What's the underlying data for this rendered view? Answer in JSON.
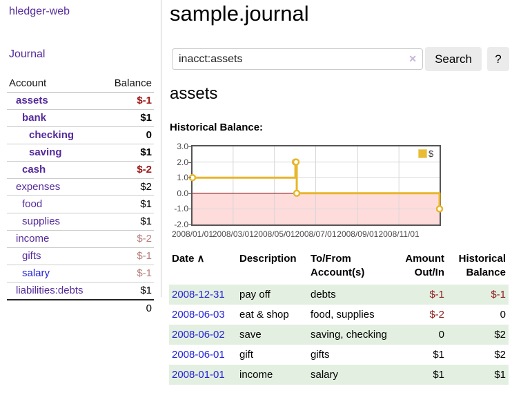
{
  "sidebar": {
    "brand": "hledger-web",
    "nav": {
      "journal": "Journal"
    },
    "table": {
      "header": {
        "account": "Account",
        "balance": "Balance"
      },
      "rows": [
        {
          "account": "assets",
          "balance": "$-1",
          "level": 1,
          "bold": true,
          "balance_style": "negative",
          "link_style": "visited"
        },
        {
          "account": "bank",
          "balance": "$1",
          "level": 2,
          "bold": true,
          "balance_style": "normal",
          "link_style": "visited"
        },
        {
          "account": "checking",
          "balance": "0",
          "level": 3,
          "bold": true,
          "balance_style": "normal",
          "link_style": "visited"
        },
        {
          "account": "saving",
          "balance": "$1",
          "level": 3,
          "bold": true,
          "balance_style": "normal",
          "link_style": "visited"
        },
        {
          "account": "cash",
          "balance": "$-2",
          "level": 2,
          "bold": true,
          "balance_style": "negative",
          "link_style": "visited"
        },
        {
          "account": "expenses",
          "balance": "$2",
          "level": 1,
          "bold": false,
          "balance_style": "normal",
          "link_style": "visited"
        },
        {
          "account": "food",
          "balance": "$1",
          "level": 2,
          "bold": false,
          "balance_style": "normal",
          "link_style": "visited"
        },
        {
          "account": "supplies",
          "balance": "$1",
          "level": 2,
          "bold": false,
          "balance_style": "normal",
          "link_style": "visited"
        },
        {
          "account": "income",
          "balance": "$-2",
          "level": 1,
          "bold": false,
          "balance_style": "negative-muted",
          "link_style": "visited"
        },
        {
          "account": "gifts",
          "balance": "$-1",
          "level": 2,
          "bold": false,
          "balance_style": "negative-muted",
          "link_style": "visited"
        },
        {
          "account": "salary",
          "balance": "$-1",
          "level": 2,
          "bold": false,
          "balance_style": "negative-muted",
          "link_style": "unvisited"
        },
        {
          "account": "liabilities:debts",
          "balance": "$1",
          "level": 1,
          "bold": false,
          "balance_style": "normal",
          "link_style": "visited"
        }
      ],
      "total": "0"
    }
  },
  "main": {
    "title": "sample.journal",
    "search": {
      "value": "inacct:assets",
      "clear_icon": "✕",
      "search_button": "Search",
      "help_button": "?"
    },
    "account_heading": "assets",
    "chart_heading": "Historical Balance:"
  },
  "chart_data": {
    "type": "line",
    "step": true,
    "title": "Historical Balance:",
    "x_range": [
      "2008-01-01",
      "2008-12-31"
    ],
    "ylim": [
      -2,
      3
    ],
    "y_ticks": [
      "3.0",
      "2.0",
      "1.0",
      "0.0",
      "-1.0",
      "-2.0"
    ],
    "x_ticks": [
      {
        "label": "2008/01/01",
        "date": "2008-01-01"
      },
      {
        "label": "2008/03/01",
        "date": "2008-03-01"
      },
      {
        "label": "2008/05/01",
        "date": "2008-05-01"
      },
      {
        "label": "2008/07/01",
        "date": "2008-07-01"
      },
      {
        "label": "2008/09/01",
        "date": "2008-09-01"
      },
      {
        "label": "2008/11/01",
        "date": "2008-11-01"
      }
    ],
    "series": [
      {
        "name": "$",
        "color": "#e8b62d",
        "points": [
          {
            "date": "2008-01-01",
            "value": 1
          },
          {
            "date": "2008-06-01",
            "value": 2
          },
          {
            "date": "2008-06-02",
            "value": 2
          },
          {
            "date": "2008-06-03",
            "value": 0
          },
          {
            "date": "2008-12-31",
            "value": -1
          }
        ]
      }
    ],
    "legend_position": "top-right",
    "grid": true,
    "grid_color": "#d7d7d7",
    "negative_region_color": "#ffdcdc",
    "zero_line_color": "#8b1a1a"
  },
  "register": {
    "columns": [
      {
        "line1": "Date",
        "line2": "",
        "align": "left",
        "sort": "∧"
      },
      {
        "line1": "Description",
        "line2": "",
        "align": "left"
      },
      {
        "line1": "To/From",
        "line2": "Account(s)",
        "align": "left"
      },
      {
        "line1": "Amount",
        "line2": "Out/In",
        "align": "right"
      },
      {
        "line1": "Historical",
        "line2": "Balance",
        "align": "right"
      }
    ],
    "rows": [
      {
        "date": "2008-12-31",
        "description": "pay off",
        "accounts": [
          "debts"
        ],
        "amount": "$-1",
        "balance": "$-1"
      },
      {
        "date": "2008-06-03",
        "description": "eat & shop",
        "accounts": [
          "food",
          "supplies"
        ],
        "amount": "$-2",
        "balance": "0"
      },
      {
        "date": "2008-06-02",
        "description": "save",
        "accounts": [
          "saving",
          "checking"
        ],
        "amount": "0",
        "balance": "$2"
      },
      {
        "date": "2008-06-01",
        "description": "gift",
        "accounts": [
          "gifts"
        ],
        "amount": "$1",
        "balance": "$2"
      },
      {
        "date": "2008-01-01",
        "description": "income",
        "accounts": [
          "salary"
        ],
        "amount": "$1",
        "balance": "$1"
      }
    ]
  }
}
